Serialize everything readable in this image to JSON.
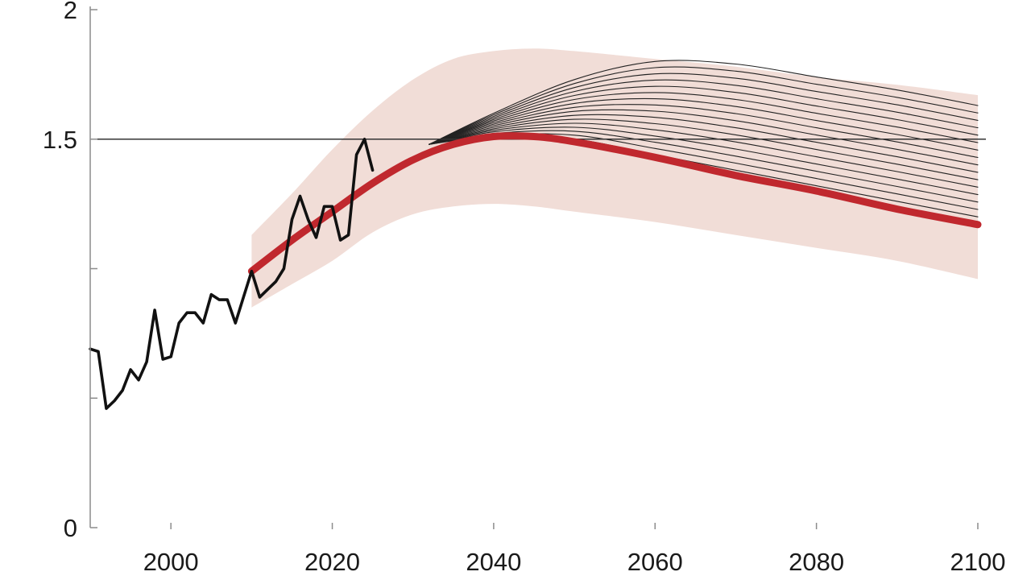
{
  "chart_data": {
    "type": "line",
    "title": "",
    "xlabel": "",
    "ylabel": "",
    "xlim": [
      1990,
      2101
    ],
    "ylim": [
      0,
      2
    ],
    "x_ticks": [
      2000,
      2020,
      2040,
      2060,
      2080,
      2100
    ],
    "x_tick_labels": [
      "2000",
      "2020",
      "2040",
      "2060",
      "2080",
      "2100"
    ],
    "y_ticks": [
      0,
      0.5,
      1,
      1.5,
      2
    ],
    "y_tick_labels": [
      "0",
      "",
      "",
      "1.5",
      "2"
    ],
    "reference_line": {
      "y": 1.5
    },
    "colors": {
      "observed": "#111111",
      "central": "#c0282e",
      "band": "#f1ddd7",
      "overshoot_fan": "#222222",
      "axis": "#8c8c8c",
      "reference": "#333333"
    },
    "observed": {
      "x": [
        1990,
        1991,
        1992,
        1993,
        1994,
        1995,
        1996,
        1997,
        1998,
        1999,
        2000,
        2001,
        2002,
        2003,
        2004,
        2005,
        2006,
        2007,
        2008,
        2009,
        2010,
        2011,
        2012,
        2013,
        2014,
        2015,
        2016,
        2017,
        2018,
        2019,
        2020,
        2021,
        2022,
        2023,
        2024,
        2025
      ],
      "y": [
        0.69,
        0.68,
        0.46,
        0.49,
        0.53,
        0.61,
        0.57,
        0.64,
        0.84,
        0.65,
        0.66,
        0.79,
        0.83,
        0.83,
        0.79,
        0.9,
        0.88,
        0.88,
        0.79,
        0.89,
        0.99,
        0.89,
        0.92,
        0.95,
        1.0,
        1.19,
        1.28,
        1.19,
        1.12,
        1.24,
        1.24,
        1.11,
        1.13,
        1.44,
        1.5,
        1.38
      ]
    },
    "central": {
      "x": [
        2010,
        2015,
        2020,
        2025,
        2030,
        2035,
        2040,
        2045,
        2050,
        2060,
        2070,
        2080,
        2090,
        2100
      ],
      "y": [
        0.99,
        1.11,
        1.22,
        1.33,
        1.42,
        1.48,
        1.51,
        1.51,
        1.49,
        1.43,
        1.36,
        1.3,
        1.23,
        1.17
      ]
    },
    "band": {
      "x": [
        2010,
        2015,
        2020,
        2025,
        2030,
        2035,
        2040,
        2045,
        2050,
        2060,
        2070,
        2080,
        2090,
        2100
      ],
      "upper": [
        1.13,
        1.29,
        1.46,
        1.61,
        1.73,
        1.81,
        1.84,
        1.85,
        1.84,
        1.81,
        1.78,
        1.74,
        1.71,
        1.67
      ],
      "lower": [
        0.85,
        0.94,
        1.03,
        1.14,
        1.21,
        1.24,
        1.25,
        1.24,
        1.22,
        1.18,
        1.13,
        1.08,
        1.03,
        0.96
      ]
    },
    "overshoot_fan": {
      "count": 16,
      "x": [
        2032,
        2040,
        2050,
        2060,
        2070,
        2080,
        2090,
        2100
      ],
      "top": [
        1.48,
        1.6,
        1.73,
        1.8,
        1.79,
        1.74,
        1.69,
        1.63
      ],
      "bottom": [
        1.48,
        1.51,
        1.5,
        1.44,
        1.38,
        1.32,
        1.26,
        1.2
      ]
    }
  }
}
